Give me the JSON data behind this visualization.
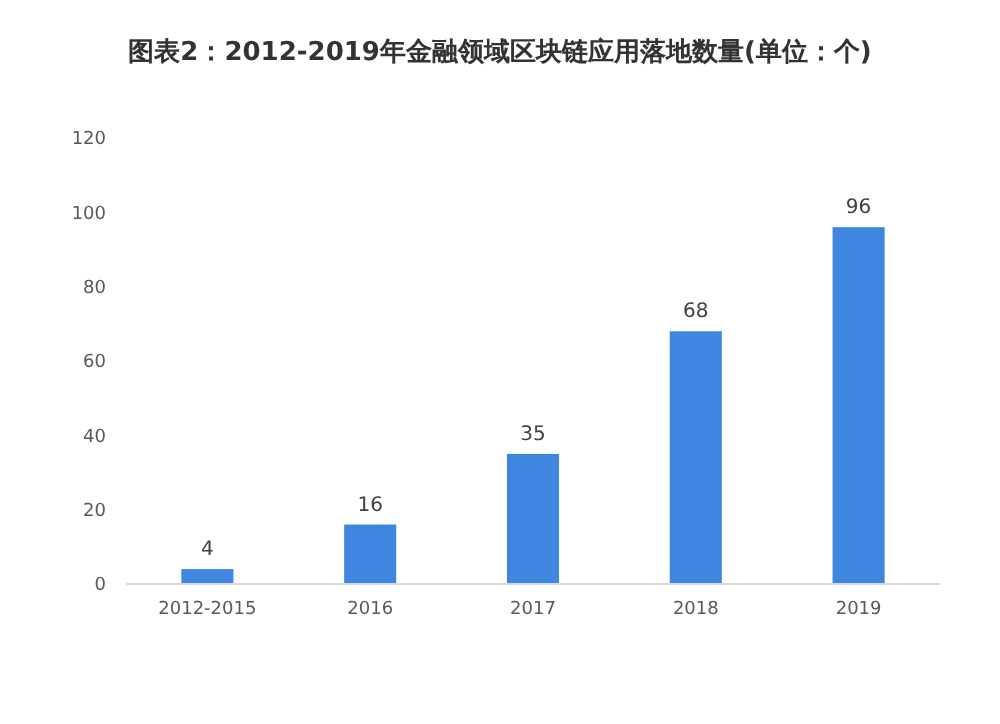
{
  "chart_data": {
    "type": "bar",
    "title": "图表2：2012-2019年金融领域区块链应用落地数量(单位：个)",
    "categories": [
      "2012-2015",
      "2016",
      "2017",
      "2018",
      "2019"
    ],
    "values": [
      4,
      16,
      35,
      68,
      96
    ],
    "color": "#3f86e0",
    "ylim": [
      0,
      120
    ],
    "yticks": [
      0,
      20,
      40,
      60,
      80,
      100,
      120
    ],
    "data_labels": true,
    "grid": false
  }
}
